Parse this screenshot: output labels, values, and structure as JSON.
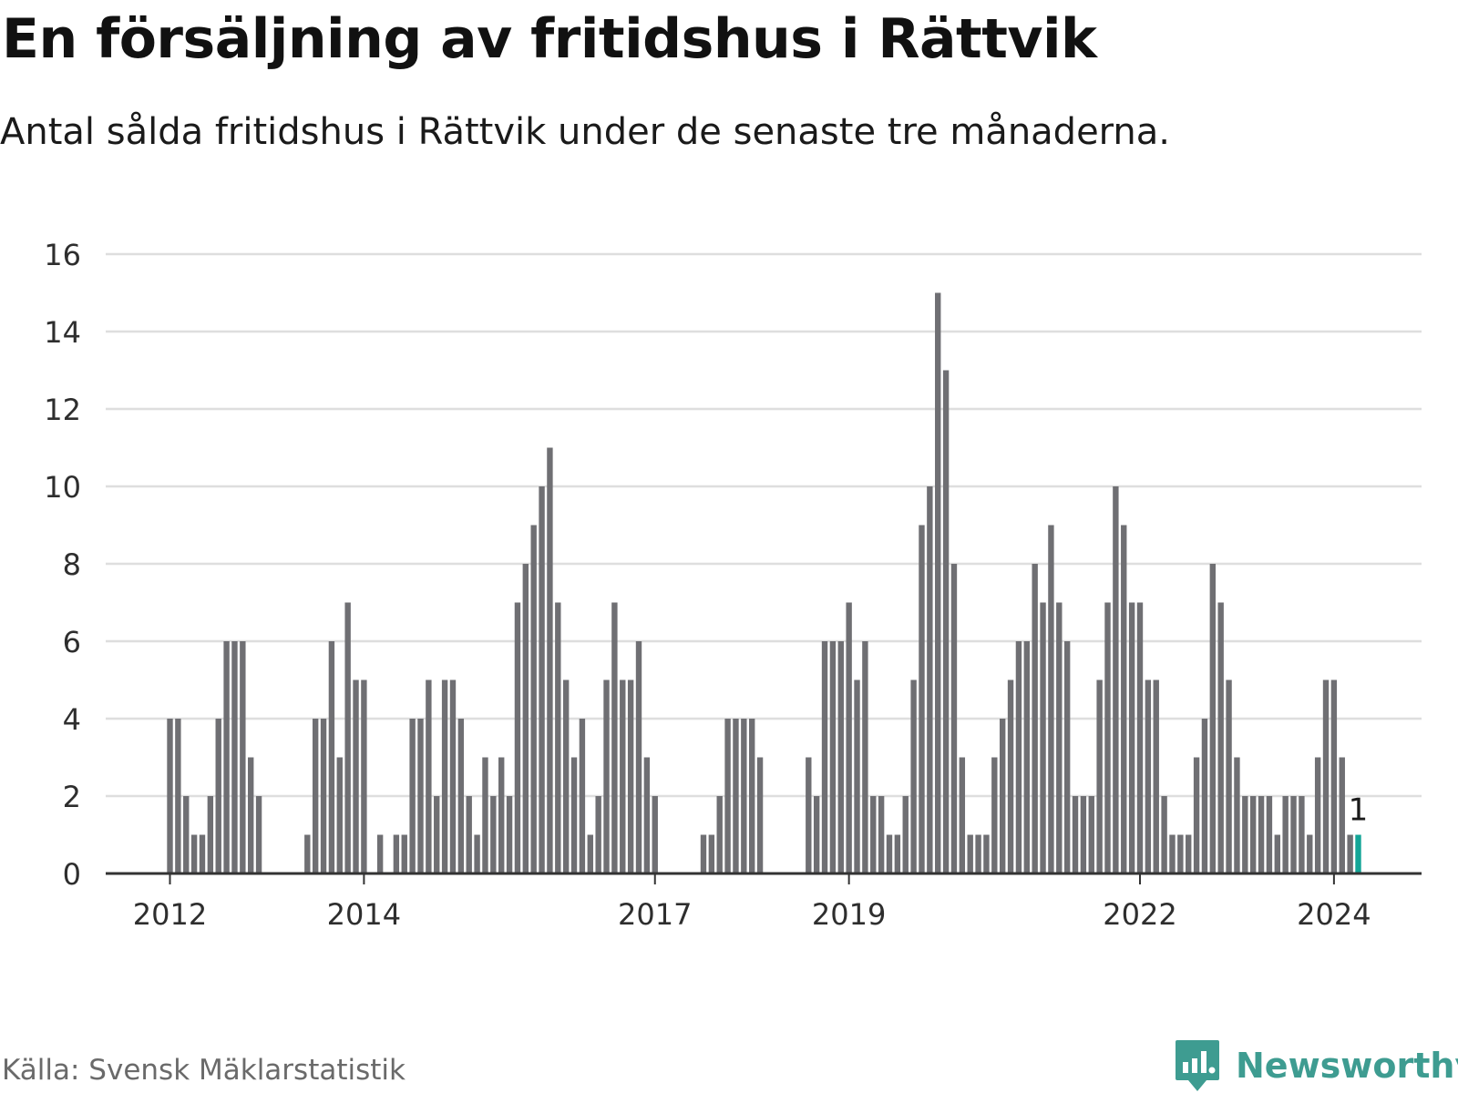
{
  "header": {
    "title": "En försäljning av fritidshus i Rättvik",
    "subtitle": "Antal sålda fritidshus i Rättvik under de senaste tre månaderna."
  },
  "footer": {
    "source": "Källa: Svensk Mäklarstatistik",
    "brand": "Newsworthy",
    "brand_icon": "bar-chart-speech-bubble-icon"
  },
  "colors": {
    "bar": "#6f6f73",
    "highlight": "#13a597",
    "brand": "#3e9c91"
  },
  "chart_data": {
    "type": "bar",
    "x_start": "2012-01",
    "x_unit": "month",
    "values": [
      4,
      4,
      2,
      1,
      1,
      2,
      4,
      6,
      6,
      6,
      3,
      2,
      0,
      0,
      0,
      0,
      0,
      1,
      4,
      4,
      6,
      3,
      7,
      5,
      5,
      0,
      1,
      0,
      1,
      1,
      4,
      4,
      5,
      2,
      5,
      5,
      4,
      2,
      1,
      3,
      2,
      3,
      2,
      7,
      8,
      9,
      10,
      11,
      7,
      5,
      3,
      4,
      1,
      2,
      5,
      7,
      5,
      5,
      6,
      3,
      2,
      0,
      0,
      0,
      0,
      0,
      1,
      1,
      2,
      4,
      4,
      4,
      4,
      3,
      0,
      0,
      0,
      0,
      0,
      3,
      2,
      6,
      6,
      6,
      7,
      5,
      6,
      2,
      2,
      1,
      1,
      2,
      5,
      9,
      10,
      15,
      13,
      8,
      3,
      1,
      1,
      1,
      3,
      4,
      5,
      6,
      6,
      8,
      7,
      9,
      7,
      6,
      2,
      2,
      2,
      5,
      7,
      10,
      9,
      7,
      7,
      5,
      5,
      2,
      1,
      1,
      1,
      3,
      4,
      8,
      7,
      5,
      3,
      2,
      2,
      2,
      2,
      1,
      2,
      2,
      2,
      1,
      3,
      5,
      5,
      3,
      1,
      1
    ],
    "highlight_last": true,
    "highlight_label": "1",
    "x_ticks": [
      "2012",
      "2014",
      "2017",
      "2019",
      "2022",
      "2024"
    ],
    "x_tick_months": [
      "2012-01",
      "2014-01",
      "2017-01",
      "2019-01",
      "2022-01",
      "2024-01"
    ],
    "y_ticks": [
      0,
      2,
      4,
      6,
      8,
      10,
      12,
      14,
      16
    ],
    "ylim": [
      0,
      16
    ],
    "grid": true,
    "xlabel": "",
    "ylabel": ""
  }
}
